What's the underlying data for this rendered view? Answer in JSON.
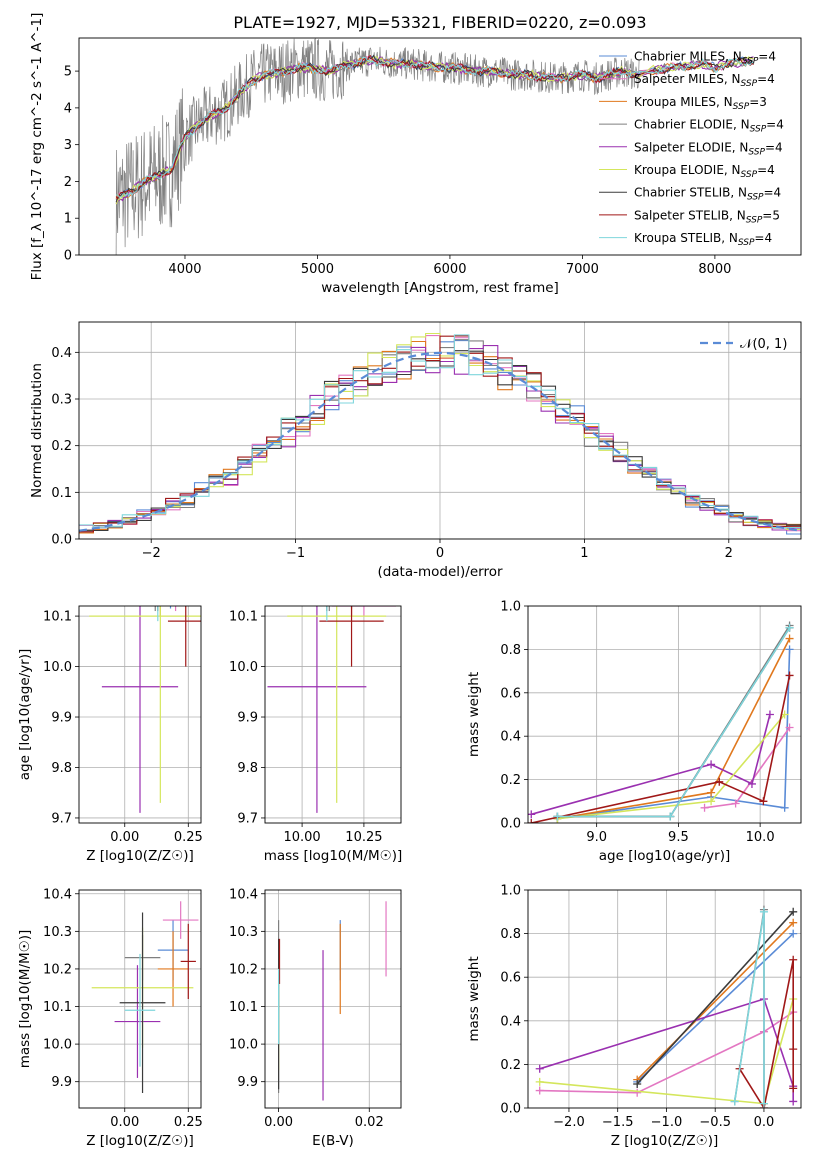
{
  "figure_title": "PLATE=1927, MJD=53321, FIBERID=0220, z=0.093",
  "colors": {
    "Chabrier MILES": "#5a8bd6",
    "Salpeter MILES": "#e377c2",
    "Kroupa MILES": "#e0781e",
    "Chabrier ELODIE": "#7f7f7f",
    "Salpeter ELODIE": "#9a30b0",
    "Kroupa ELODIE": "#d4e65c",
    "Chabrier STELIB": "#3b3b3b",
    "Salpeter STELIB": "#a01818",
    "Kroupa STELIB": "#7fd6dc"
  },
  "chart_data": [
    {
      "id": "spectrum",
      "type": "line",
      "title": "PLATE=1927, MJD=53321, FIBERID=0220, z=0.093",
      "xlabel": "wavelength [Angstrom, rest frame]",
      "ylabel": "Flux [f_λ 10^-17 erg cm^-2 s^-1 A^-1]",
      "xlim": [
        3200,
        8650
      ],
      "ylim": [
        0,
        5.9
      ],
      "xticks": [
        "4000",
        "5000",
        "6000",
        "7000",
        "8000"
      ],
      "yticks": [
        "0",
        "1",
        "2",
        "3",
        "4",
        "5"
      ],
      "grid": false,
      "legend_position": "top-right",
      "continuum": [
        [
          3480,
          1.5
        ],
        [
          3600,
          1.75
        ],
        [
          3700,
          2.0
        ],
        [
          3800,
          2.15
        ],
        [
          3900,
          2.35
        ],
        [
          4000,
          3.2
        ],
        [
          4100,
          3.55
        ],
        [
          4200,
          3.8
        ],
        [
          4300,
          3.95
        ],
        [
          4400,
          4.35
        ],
        [
          4500,
          4.7
        ],
        [
          4600,
          4.9
        ],
        [
          4700,
          4.95
        ],
        [
          4800,
          5.05
        ],
        [
          4900,
          5.1
        ],
        [
          5000,
          5.05
        ],
        [
          5100,
          5.0
        ],
        [
          5200,
          5.15
        ],
        [
          5300,
          5.2
        ],
        [
          5400,
          5.3
        ],
        [
          5500,
          5.25
        ],
        [
          5600,
          5.2
        ],
        [
          5700,
          5.2
        ],
        [
          5800,
          5.15
        ],
        [
          5900,
          5.1
        ],
        [
          6000,
          5.1
        ],
        [
          6100,
          5.05
        ],
        [
          6200,
          5.0
        ],
        [
          6300,
          5.0
        ],
        [
          6400,
          4.95
        ],
        [
          6500,
          4.9
        ],
        [
          6600,
          4.9
        ],
        [
          6700,
          4.85
        ],
        [
          6800,
          4.8
        ],
        [
          6900,
          4.85
        ],
        [
          7000,
          4.9
        ],
        [
          7100,
          4.8
        ],
        [
          7200,
          4.9
        ],
        [
          7300,
          5.0
        ],
        [
          7400,
          4.9
        ],
        [
          7500,
          5.0
        ],
        [
          7600,
          5.05
        ],
        [
          7700,
          5.1
        ],
        [
          7800,
          5.15
        ],
        [
          7900,
          5.2
        ],
        [
          8000,
          5.1
        ],
        [
          8100,
          5.2
        ],
        [
          8200,
          5.25
        ],
        [
          8300,
          5.3
        ]
      ],
      "legend": [
        {
          "label": "Chabrier MILES, N",
          "sub": "SSP",
          "suffix": "=4",
          "model": "Chabrier MILES"
        },
        {
          "label": "Salpeter MILES, N",
          "sub": "SSP",
          "suffix": "=4",
          "model": "Salpeter MILES"
        },
        {
          "label": "Kroupa MILES, N",
          "sub": "SSP",
          "suffix": "=3",
          "model": "Kroupa MILES"
        },
        {
          "label": "Chabrier ELODIE, N",
          "sub": "SSP",
          "suffix": "=4",
          "model": "Chabrier ELODIE"
        },
        {
          "label": "Salpeter ELODIE, N",
          "sub": "SSP",
          "suffix": "=4",
          "model": "Salpeter ELODIE"
        },
        {
          "label": "Kroupa ELODIE, N",
          "sub": "SSP",
          "suffix": "=4",
          "model": "Kroupa ELODIE"
        },
        {
          "label": "Chabrier STELIB, N",
          "sub": "SSP",
          "suffix": "=4",
          "model": "Chabrier STELIB"
        },
        {
          "label": "Salpeter STELIB, N",
          "sub": "SSP",
          "suffix": "=5",
          "model": "Salpeter STELIB"
        },
        {
          "label": "Kroupa STELIB, N",
          "sub": "SSP",
          "suffix": "=4",
          "model": "Kroupa STELIB"
        }
      ]
    },
    {
      "id": "residuals",
      "type": "line",
      "xlabel": "(data-model)/error",
      "ylabel": "Normed distribution",
      "xlim": [
        -2.5,
        2.5
      ],
      "ylim": [
        0,
        0.465
      ],
      "xticks": [
        "−2",
        "−1",
        "0",
        "1",
        "2"
      ],
      "yticks": [
        "0.0",
        "0.1",
        "0.2",
        "0.3",
        "0.4"
      ],
      "grid": true,
      "legend_position": "top-right",
      "legend": [
        {
          "label": "𝒩(0, 1)"
        }
      ],
      "reference_curve": "normal(0,1)"
    },
    {
      "id": "age-vs-Z",
      "type": "scatter",
      "xlabel": "Z [log10(Z/Z☉)]",
      "ylabel": "age  [log10(age/yr)]",
      "xlim": [
        -0.18,
        0.3
      ],
      "ylim": [
        9.69,
        10.12
      ],
      "xticks": [
        "0.00",
        "0.25"
      ],
      "yticks": [
        "9.7",
        "9.8",
        "9.9",
        "10.0",
        "10.1"
      ],
      "grid": true,
      "points": [
        {
          "model": "Chabrier MILES",
          "x": 0.18,
          "xerr": 0.12,
          "y": 10.14,
          "yerr": 0.025
        },
        {
          "model": "Salpeter MILES",
          "x": 0.2,
          "xerr": 0.09,
          "y": 10.13,
          "yerr": 0.02
        },
        {
          "model": "Kroupa MILES",
          "x": 0.14,
          "xerr": 0.12,
          "y": 10.13,
          "yerr": 0.03
        },
        {
          "model": "Chabrier ELODIE",
          "x": 0.12,
          "xerr": 0.14,
          "y": 10.14,
          "yerr": 0.03
        },
        {
          "model": "Salpeter ELODIE",
          "x": 0.06,
          "xerr": 0.15,
          "y": 9.96,
          "yerr": 0.25
        },
        {
          "model": "Kroupa ELODIE",
          "x": 0.14,
          "xerr": 0.28,
          "y": 10.1,
          "yerr": 0.37
        },
        {
          "model": "Chabrier STELIB",
          "x": 0.13,
          "xerr": 0.12,
          "y": 10.14,
          "yerr": 0.03
        },
        {
          "model": "Salpeter STELIB",
          "x": 0.24,
          "xerr": 0.07,
          "y": 10.09,
          "yerr": 0.09
        },
        {
          "model": "Kroupa STELIB",
          "x": 0.13,
          "xerr": 0.14,
          "y": 10.14,
          "yerr": 0.05
        }
      ]
    },
    {
      "id": "age-vs-mass",
      "type": "scatter",
      "xlabel": "mass [log10(M/M☉)]",
      "ylabel": "",
      "xlim": [
        9.85,
        10.4
      ],
      "ylim": [
        9.69,
        10.12
      ],
      "xticks": [
        "10.00",
        "10.25"
      ],
      "yticks": [
        "9.7",
        "9.8",
        "9.9",
        "10.0",
        "10.1"
      ],
      "grid": true,
      "points": [
        {
          "model": "Chabrier MILES",
          "x": 10.2,
          "xerr": 0.12,
          "y": 10.14,
          "yerr": 0.025
        },
        {
          "model": "Salpeter MILES",
          "x": 10.25,
          "xerr": 0.13,
          "y": 10.12,
          "yerr": 0.02
        },
        {
          "model": "Kroupa MILES",
          "x": 10.2,
          "xerr": 0.12,
          "y": 10.13,
          "yerr": 0.03
        },
        {
          "model": "Chabrier ELODIE",
          "x": 10.11,
          "xerr": 0.2,
          "y": 10.14,
          "yerr": 0.03
        },
        {
          "model": "Salpeter ELODIE",
          "x": 10.06,
          "xerr": 0.2,
          "y": 9.96,
          "yerr": 0.25
        },
        {
          "model": "Kroupa ELODIE",
          "x": 10.14,
          "xerr": 0.2,
          "y": 10.1,
          "yerr": 0.37
        },
        {
          "model": "Chabrier STELIB",
          "x": 10.1,
          "xerr": 0.12,
          "y": 10.14,
          "yerr": 0.03
        },
        {
          "model": "Salpeter STELIB",
          "x": 10.2,
          "xerr": 0.13,
          "y": 10.09,
          "yerr": 0.09
        },
        {
          "model": "Kroupa STELIB",
          "x": 10.1,
          "xerr": 0.14,
          "y": 10.14,
          "yerr": 0.05
        }
      ]
    },
    {
      "id": "weight-vs-age",
      "type": "line",
      "xlabel": "age  [log10(age/yr)]",
      "ylabel": "mass weight",
      "xlim": [
        8.58,
        10.25
      ],
      "ylim": [
        0,
        1.0
      ],
      "xticks": [
        "9.0",
        "9.5",
        "10.0"
      ],
      "yticks": [
        "0.0",
        "0.2",
        "0.4",
        "0.6",
        "0.8",
        "1.0"
      ],
      "grid": true,
      "series": [
        {
          "model": "Chabrier MILES",
          "x": [
            8.76,
            9.7,
            10.15,
            10.18
          ],
          "y": [
            0.02,
            0.12,
            0.07,
            0.8
          ]
        },
        {
          "model": "Salpeter MILES",
          "x": [
            9.66,
            9.85,
            10.18
          ],
          "y": [
            0.07,
            0.09,
            0.44
          ]
        },
        {
          "model": "Kroupa MILES",
          "x": [
            8.76,
            9.7,
            10.18
          ],
          "y": [
            0.02,
            0.14,
            0.85
          ]
        },
        {
          "model": "Chabrier ELODIE",
          "x": [
            8.76,
            9.45,
            10.18
          ],
          "y": [
            0.03,
            0.03,
            0.91
          ]
        },
        {
          "model": "Salpeter ELODIE",
          "x": [
            8.6,
            9.7,
            9.95,
            10.06
          ],
          "y": [
            0.04,
            0.27,
            0.18,
            0.5
          ]
        },
        {
          "model": "Kroupa ELODIE",
          "x": [
            8.76,
            9.7,
            10.15
          ],
          "y": [
            0.02,
            0.1,
            0.5
          ]
        },
        {
          "model": "Chabrier STELIB",
          "x": [
            8.76,
            9.45,
            10.18
          ],
          "y": [
            0.03,
            0.03,
            0.9
          ]
        },
        {
          "model": "Salpeter STELIB",
          "x": [
            8.6,
            9.75,
            10.02,
            10.18
          ],
          "y": [
            0.0,
            0.19,
            0.1,
            0.68
          ]
        },
        {
          "model": "Kroupa STELIB",
          "x": [
            8.76,
            9.45,
            10.18
          ],
          "y": [
            0.03,
            0.03,
            0.9
          ]
        }
      ]
    },
    {
      "id": "mass-vs-Z",
      "type": "scatter",
      "xlabel": "Z [log10(Z/Z☉)]",
      "ylabel": "mass [log10(M/M☉)]",
      "xlim": [
        -0.18,
        0.3
      ],
      "ylim": [
        9.83,
        10.41
      ],
      "xticks": [
        "0.00",
        "0.25"
      ],
      "yticks": [
        "9.9",
        "10.0",
        "10.1",
        "10.2",
        "10.3",
        "10.4"
      ],
      "grid": true,
      "points": [
        {
          "model": "Chabrier MILES",
          "x": 0.19,
          "xerr": 0.06,
          "y": 10.25,
          "yerr": 0.08
        },
        {
          "model": "Salpeter MILES",
          "x": 0.22,
          "xerr": 0.07,
          "y": 10.33,
          "yerr": 0.05
        },
        {
          "model": "Kroupa MILES",
          "x": 0.19,
          "xerr": 0.06,
          "y": 10.2,
          "yerr": 0.1
        },
        {
          "model": "Chabrier ELODIE",
          "x": 0.07,
          "xerr": 0.07,
          "y": 10.23,
          "yerr": 0.06
        },
        {
          "model": "Salpeter ELODIE",
          "x": 0.05,
          "xerr": 0.09,
          "y": 10.06,
          "yerr": 0.15
        },
        {
          "model": "Kroupa ELODIE",
          "x": 0.07,
          "xerr": 0.2,
          "y": 10.15,
          "yerr": 0.16
        },
        {
          "model": "Chabrier STELIB",
          "x": 0.07,
          "xerr": 0.09,
          "y": 10.11,
          "yerr": 0.24
        },
        {
          "model": "Salpeter STELIB",
          "x": 0.25,
          "xerr": 0.03,
          "y": 10.22,
          "yerr": 0.1
        },
        {
          "model": "Kroupa STELIB",
          "x": 0.06,
          "xerr": 0.06,
          "y": 10.09,
          "yerr": 0.15
        }
      ]
    },
    {
      "id": "mass-vs-EBV",
      "type": "scatter",
      "xlabel": "E(B-V)",
      "ylabel": "",
      "xlim": [
        -0.003,
        0.027
      ],
      "ylim": [
        9.83,
        10.41
      ],
      "xticks": [
        "0.00",
        "0.02"
      ],
      "yticks": [
        "9.9",
        "10.0",
        "10.1",
        "10.2",
        "10.3",
        "10.4"
      ],
      "grid": true,
      "points": [
        {
          "model": "Chabrier MILES",
          "x": 0.0136,
          "xerr": 0,
          "y": 10.25,
          "yerr": 0.08
        },
        {
          "model": "Salpeter MILES",
          "x": 0.0237,
          "xerr": 0,
          "y": 10.28,
          "yerr": 0.1
        },
        {
          "model": "Kroupa MILES",
          "x": 0.0136,
          "xerr": 0,
          "y": 10.2,
          "yerr": 0.12
        },
        {
          "model": "Chabrier ELODIE",
          "x": 0.0,
          "xerr": 0,
          "y": 10.1,
          "yerr": 0.23
        },
        {
          "model": "Salpeter ELODIE",
          "x": 0.0098,
          "xerr": 0,
          "y": 10.05,
          "yerr": 0.2
        },
        {
          "model": "Kroupa ELODIE",
          "x": 0.0,
          "xerr": 0,
          "y": 10.05,
          "yerr": 0.12
        },
        {
          "model": "Chabrier STELIB",
          "x": 0.0,
          "xerr": 0,
          "y": 10.08,
          "yerr": 0.2
        },
        {
          "model": "Salpeter STELIB",
          "x": 0.0002,
          "xerr": 0,
          "y": 10.22,
          "yerr": 0.06
        },
        {
          "model": "Kroupa STELIB",
          "x": 0.0,
          "xerr": 0,
          "y": 10.1,
          "yerr": 0.1
        }
      ]
    },
    {
      "id": "weight-vs-Z",
      "type": "line",
      "xlabel": "Z [log10(Z/Z☉)]",
      "ylabel": "mass weight",
      "xlim": [
        -2.42,
        0.38
      ],
      "ylim": [
        0,
        1.0
      ],
      "xticks": [
        "−2.0",
        "−1.5",
        "−1.0",
        "−0.5",
        "0.0"
      ],
      "yticks": [
        "0.0",
        "0.2",
        "0.4",
        "0.6",
        "0.8",
        "1.0"
      ],
      "grid": true,
      "series": [
        {
          "model": "Chabrier MILES",
          "x": [
            -1.3,
            0.3
          ],
          "y": [
            0.12,
            0.8
          ]
        },
        {
          "model": "Salpeter MILES",
          "x": [
            -2.3,
            -1.3,
            0.0,
            0.3
          ],
          "y": [
            0.08,
            0.07,
            0.35,
            0.44
          ]
        },
        {
          "model": "Kroupa MILES",
          "x": [
            -1.3,
            0.3
          ],
          "y": [
            0.13,
            0.85
          ]
        },
        {
          "model": "Chabrier ELODIE",
          "x": [
            -0.3,
            0.0,
            0.0
          ],
          "y": [
            0.03,
            0.91,
            0.02
          ]
        },
        {
          "model": "Salpeter ELODIE",
          "x": [
            -2.3,
            0.0,
            0.3,
            0.3
          ],
          "y": [
            0.18,
            0.5,
            0.1,
            0.03
          ]
        },
        {
          "model": "Kroupa ELODIE",
          "x": [
            -2.3,
            0.0,
            0.3
          ],
          "y": [
            0.12,
            0.02,
            0.5
          ]
        },
        {
          "model": "Chabrier STELIB",
          "x": [
            -1.3,
            0.3
          ],
          "y": [
            0.11,
            0.9
          ]
        },
        {
          "model": "Salpeter STELIB",
          "x": [
            -0.25,
            0.0,
            0.3,
            0.3,
            0.3
          ],
          "y": [
            0.18,
            0.0,
            0.68,
            0.27,
            0.09
          ]
        },
        {
          "model": "Kroupa STELIB",
          "x": [
            -0.3,
            0.0,
            0.0
          ],
          "y": [
            0.03,
            0.9,
            0.02
          ]
        }
      ]
    }
  ]
}
